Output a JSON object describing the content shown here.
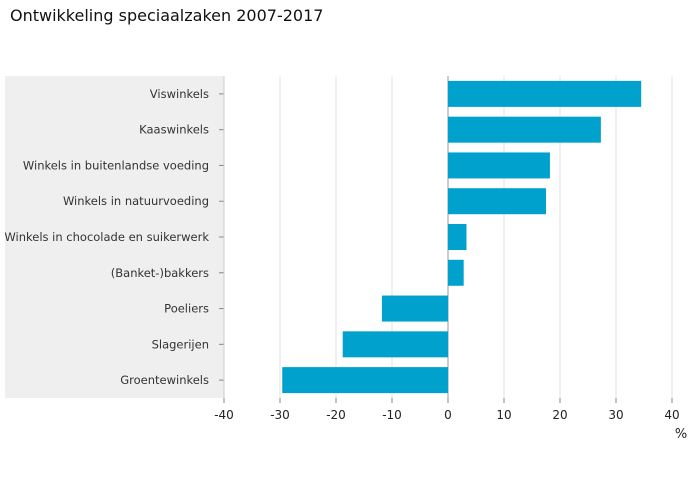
{
  "title": "Ontwikkeling speciaalzaken 2007-2017",
  "chart_data": {
    "type": "bar",
    "orientation": "horizontal",
    "title": "Ontwikkeling speciaalzaken 2007-2017",
    "xlabel": "%",
    "ylabel": "",
    "categories": [
      "Viswinkels",
      "Kaaswinkels",
      "Winkels in buitenlandse voeding",
      "Winkels in natuurvoeding",
      "Winkels in chocolade en suikerwerk",
      "(Banket-)bakkers",
      "Poeliers",
      "Slagerijen",
      "Groentewinkels"
    ],
    "values": [
      34.5,
      27.3,
      18.2,
      17.5,
      3.3,
      2.8,
      -11.8,
      -18.8,
      -29.6
    ],
    "xlim": [
      -40,
      40
    ],
    "xticks": [
      -40,
      -30,
      -20,
      -10,
      0,
      10,
      20,
      30,
      40
    ],
    "xtick_labels": [
      "-40",
      "-30",
      "-20",
      "-10",
      "0",
      "10",
      "20",
      "30",
      "40"
    ],
    "grid": "vertical",
    "bar_color": "#00a1cd",
    "label_panel_color": "#efefef"
  }
}
